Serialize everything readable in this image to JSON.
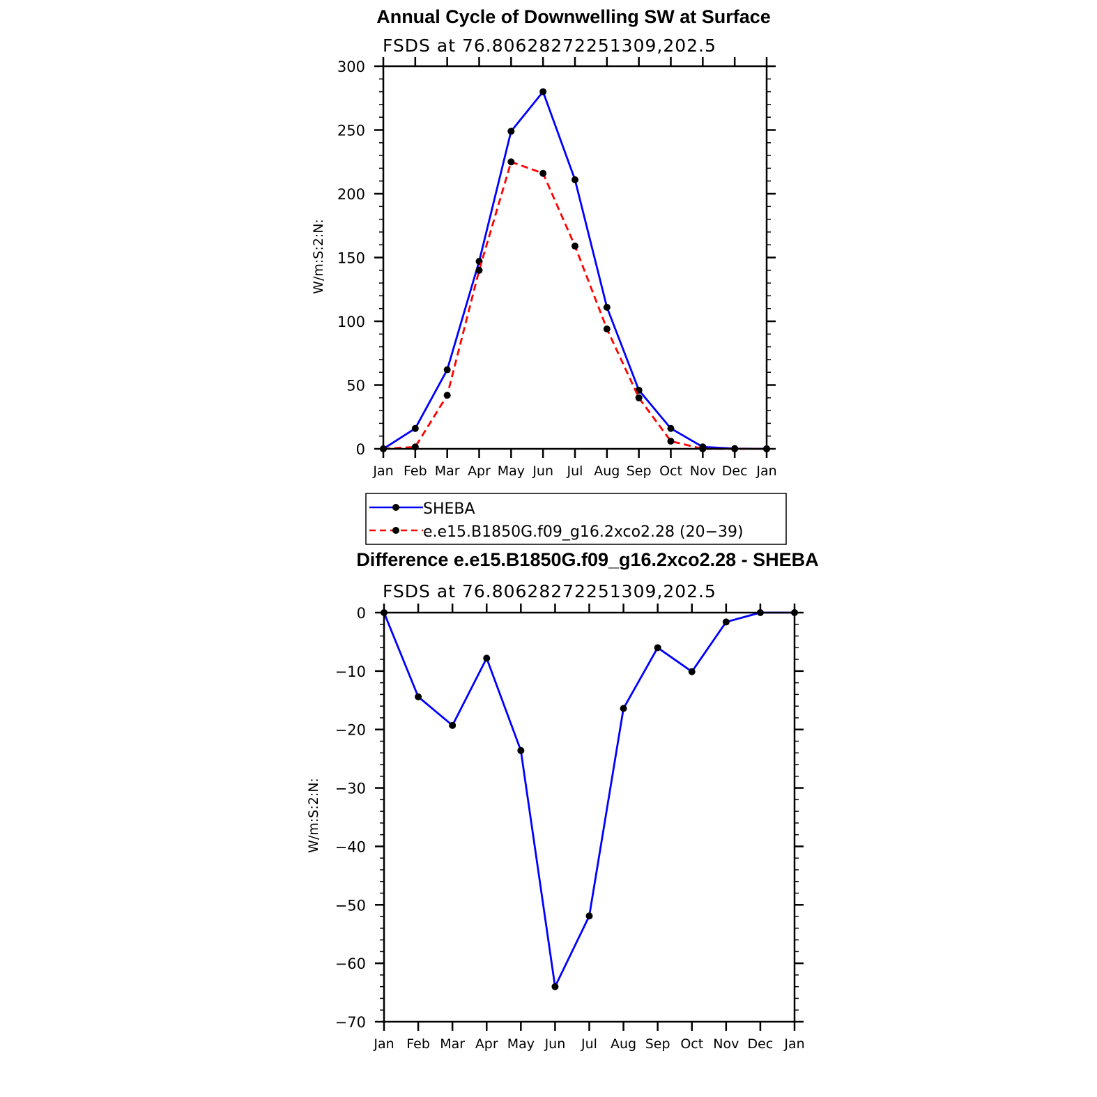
{
  "chart_data": [
    {
      "type": "line",
      "title": "Annual Cycle of Downwelling SW at Surface",
      "subtitle": "FSDS at 76.80628272251309,202.5",
      "ylabel": "W/m:S:2:N:",
      "xlabel": "",
      "ylim": [
        0,
        300
      ],
      "yticks": [
        0,
        50,
        100,
        150,
        200,
        250,
        300
      ],
      "categories": [
        "Jan",
        "Feb",
        "Mar",
        "Apr",
        "May",
        "Jun",
        "Jul",
        "Aug",
        "Sep",
        "Oct",
        "Nov",
        "Dec",
        "Jan"
      ],
      "grid": false,
      "legend_position": "below",
      "series": [
        {
          "name": "SHEBA",
          "color": "#0000ff",
          "style": "solid",
          "values": [
            0,
            16,
            62,
            147,
            249,
            280,
            211,
            111,
            46,
            16,
            1.5,
            0.2,
            0
          ]
        },
        {
          "name": "e.e15.B1850G.f09_g16.2xco2.28 (20−39)",
          "color": "#ff0000",
          "style": "dashed",
          "values": [
            0,
            1.5,
            42,
            140,
            225,
            216,
            159,
            94,
            40,
            6,
            0,
            0,
            0
          ]
        }
      ]
    },
    {
      "type": "line",
      "title": "Difference e.e15.B1850G.f09_g16.2xco2.28 - SHEBA",
      "subtitle": "FSDS at 76.80628272251309,202.5",
      "ylabel": "W/m:S:2:N:",
      "xlabel": "",
      "ylim": [
        -70,
        0
      ],
      "yticks": [
        0,
        -10,
        -20,
        -30,
        -40,
        -50,
        -60,
        -70
      ],
      "ytick_labels": [
        "0",
        "−10",
        "−20",
        "−30",
        "−40",
        "−50",
        "−60",
        "−70"
      ],
      "categories": [
        "Jan",
        "Feb",
        "Mar",
        "Apr",
        "May",
        "Jun",
        "Jul",
        "Aug",
        "Sep",
        "Oct",
        "Nov",
        "Dec",
        "Jan"
      ],
      "grid": false,
      "series": [
        {
          "color": "#0000ff",
          "style": "solid",
          "values": [
            0,
            -14.4,
            -19.3,
            -7.8,
            -23.6,
            -64,
            -51.9,
            -16.4,
            -6,
            -10.1,
            -1.6,
            0,
            0
          ]
        }
      ]
    }
  ]
}
